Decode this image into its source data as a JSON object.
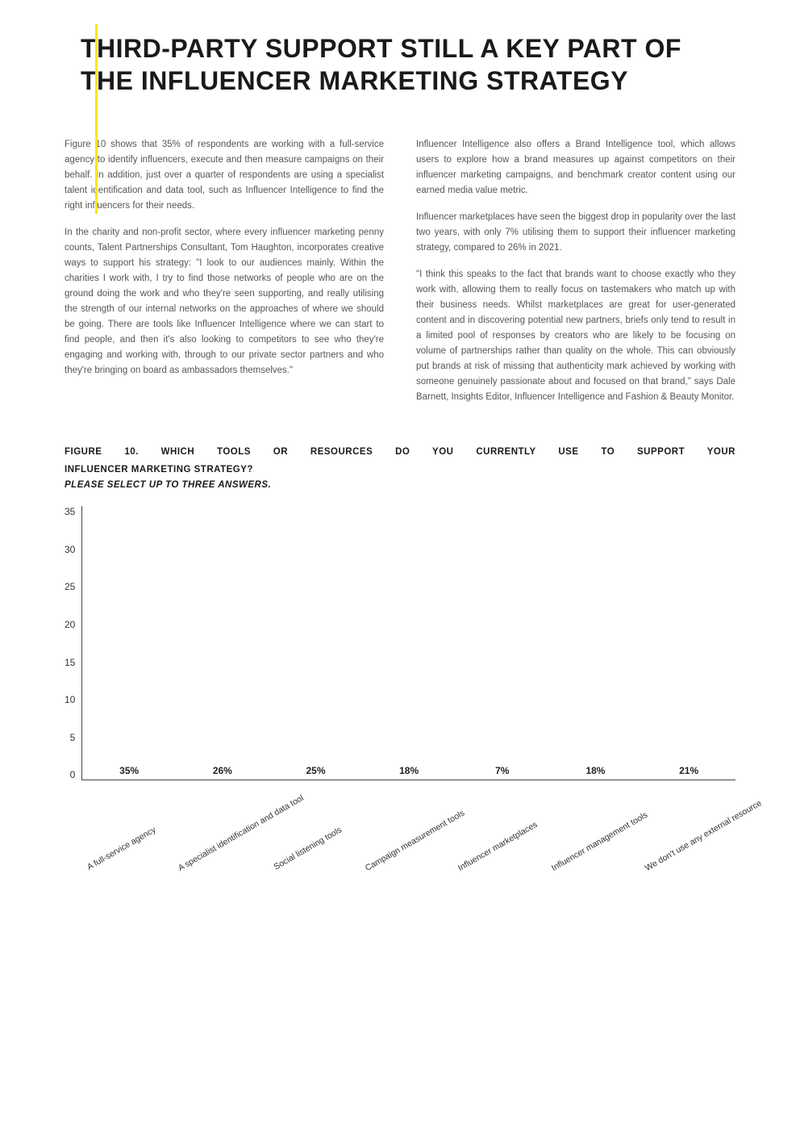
{
  "title": "THIRD-PARTY SUPPORT STILL A KEY PART OF THE INFLUENCER MARKETING STRATEGY",
  "left_col": {
    "p1": "Figure 10 shows that 35% of respondents are working with a full-service agency to identify influencers, execute and then measure campaigns on their behalf. In addition, just over a quarter of respondents are using a specialist talent identification and data tool, such as Influencer Intelligence to find the right influencers for their needs.",
    "p2": "In the charity and non-profit sector, where every influencer marketing penny counts, Talent Partnerships Consultant, Tom Haughton, incorporates creative ways to support his strategy: \"I look to our audiences mainly. Within the charities I work with, I try to find those networks of people who are on the ground doing the work and who they're seen supporting, and really utilising the strength of our internal networks on the approaches of where we should be going. There are tools like Influencer Intelligence where we can start to find people, and then it's also looking to competitors to see who they're engaging and working with, through to our private sector partners and who they're bringing on board as ambassadors themselves.\""
  },
  "right_col": {
    "p1": "Influencer Intelligence also offers a Brand Intelligence tool, which allows users to explore how a brand measures up against competitors on their influencer marketing campaigns, and benchmark creator content using our earned media value metric.",
    "p2": "Influencer marketplaces have seen the biggest drop in popularity over the last two years, with only 7% utilising them to support their influencer marketing strategy, compared to 26% in 2021.",
    "p3": "\"I think this speaks to the fact that brands want to choose exactly who they work with, allowing them to really focus on tastemakers who match up with their business needs. Whilst marketplaces are great for user-generated content and in discovering potential new partners, briefs only tend to result in a limited pool of responses by creators who are likely to be focusing on volume of partnerships rather than quality on the whole. This can obviously put brands at risk of missing that authenticity mark achieved by working with someone genuinely passionate about and focused on that brand,\" says Dale Barnett, Insights Editor, Influencer Intelligence and Fashion & Beauty Monitor."
  },
  "figure": {
    "title_line1": "FIGURE 10. WHICH TOOLS OR RESOURCES DO YOU CURRENTLY USE TO SUPPORT YOUR",
    "title_line2": "INFLUENCER MARKETING STRATEGY?",
    "subtitle": "PLEASE SELECT UP TO THREE ANSWERS."
  },
  "chart": {
    "type": "bar",
    "y_ticks": [
      "35",
      "30",
      "25",
      "20",
      "15",
      "10",
      "5",
      "0"
    ],
    "ymax": 35,
    "bar_color": "#ffe600",
    "categories": [
      {
        "label": "A full-service agency",
        "value": 35,
        "value_label": "35%"
      },
      {
        "label": "A specialist identification and data tool",
        "value": 26,
        "value_label": "26%"
      },
      {
        "label": "Social listening tools",
        "value": 25,
        "value_label": "25%"
      },
      {
        "label": "Campaign measurement tools",
        "value": 18,
        "value_label": "18%"
      },
      {
        "label": "Influencer marketplaces",
        "value": 7,
        "value_label": "7%"
      },
      {
        "label": "Influencer management tools",
        "value": 18,
        "value_label": "18%"
      },
      {
        "label": "We don't use any external resource",
        "value": 21,
        "value_label": "21%"
      }
    ]
  }
}
